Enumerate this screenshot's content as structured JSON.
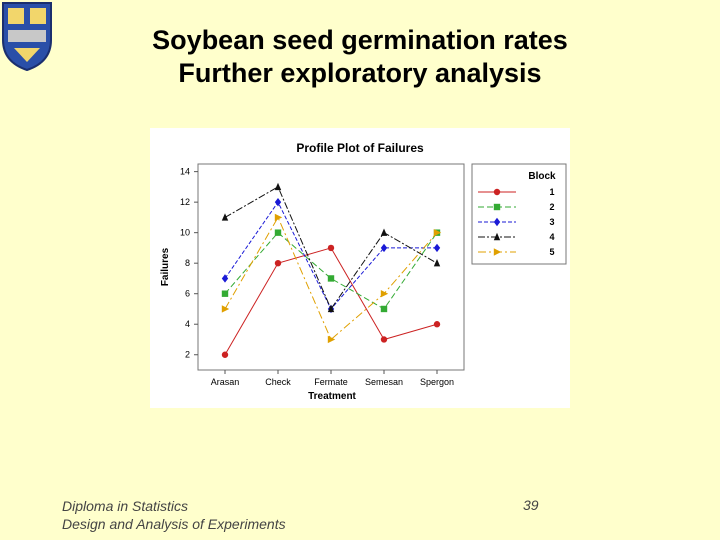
{
  "slide": {
    "title_line1": "Soybean seed germination rates",
    "title_line2": "Further exploratory analysis",
    "footer_line1": "Diploma in Statistics",
    "footer_line2": "Design and Analysis of Experiments",
    "page_number": "39"
  },
  "chart_data": {
    "type": "line",
    "title": "Profile Plot of Failures",
    "xlabel": "Treatment",
    "ylabel": "Failures",
    "categories": [
      "Arasan",
      "Check",
      "Fermate",
      "Semesan",
      "Spergon"
    ],
    "ylim": [
      1,
      14.5
    ],
    "yticks": [
      2,
      4,
      6,
      8,
      10,
      12,
      14
    ],
    "legend_title": "Block",
    "legend_position": "right",
    "grid": false,
    "series": [
      {
        "name": "1",
        "color": "#cc2222",
        "marker": "circle",
        "dash": "",
        "values": [
          2,
          8,
          9,
          3,
          4
        ]
      },
      {
        "name": "2",
        "color": "#33aa33",
        "marker": "square",
        "dash": "6 3",
        "values": [
          6,
          10,
          7,
          5,
          10
        ]
      },
      {
        "name": "3",
        "color": "#1a1ad6",
        "marker": "diamond",
        "dash": "4 2",
        "values": [
          7,
          12,
          5,
          9,
          9
        ]
      },
      {
        "name": "4",
        "color": "#111111",
        "marker": "triangle",
        "dash": "7 2 2 2",
        "values": [
          11,
          13,
          5,
          10,
          8
        ]
      },
      {
        "name": "5",
        "color": "#e0a000",
        "marker": "triangle-right",
        "dash": "8 3 2 3",
        "values": [
          5,
          11,
          3,
          6,
          10
        ]
      }
    ]
  }
}
